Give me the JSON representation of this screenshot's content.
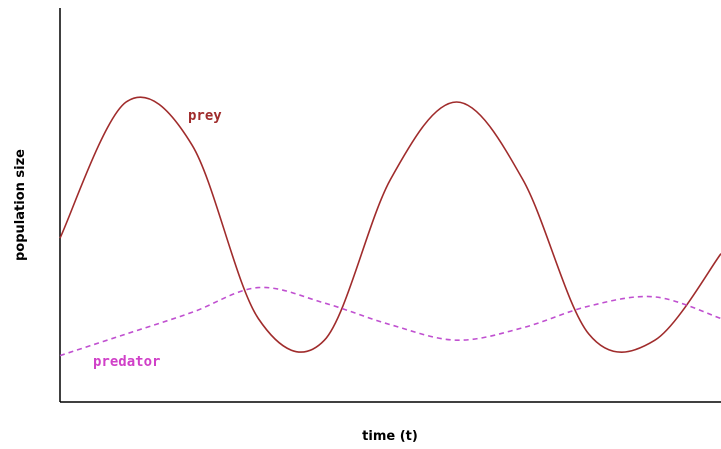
{
  "chart_data": {
    "type": "line",
    "title": "",
    "xlabel": "time (t)",
    "ylabel": "population size",
    "grid": false,
    "legend": "none",
    "x": [
      0,
      10,
      20,
      30,
      40,
      50,
      60,
      70,
      80,
      90,
      100
    ],
    "series": [
      {
        "name": "prey",
        "color": "#a02c2c",
        "line_style": "solid",
        "values": [
          53,
          97,
          83,
          27,
          20,
          72,
          97,
          72,
          22,
          20,
          48
        ]
      },
      {
        "name": "predator",
        "color": "#c050d0",
        "line_style": "dashed",
        "values": [
          15,
          22,
          29,
          37,
          32,
          25,
          20,
          24,
          31,
          34,
          27
        ]
      }
    ],
    "xlim": [
      0,
      100
    ],
    "ylim": [
      0,
      130
    ]
  }
}
